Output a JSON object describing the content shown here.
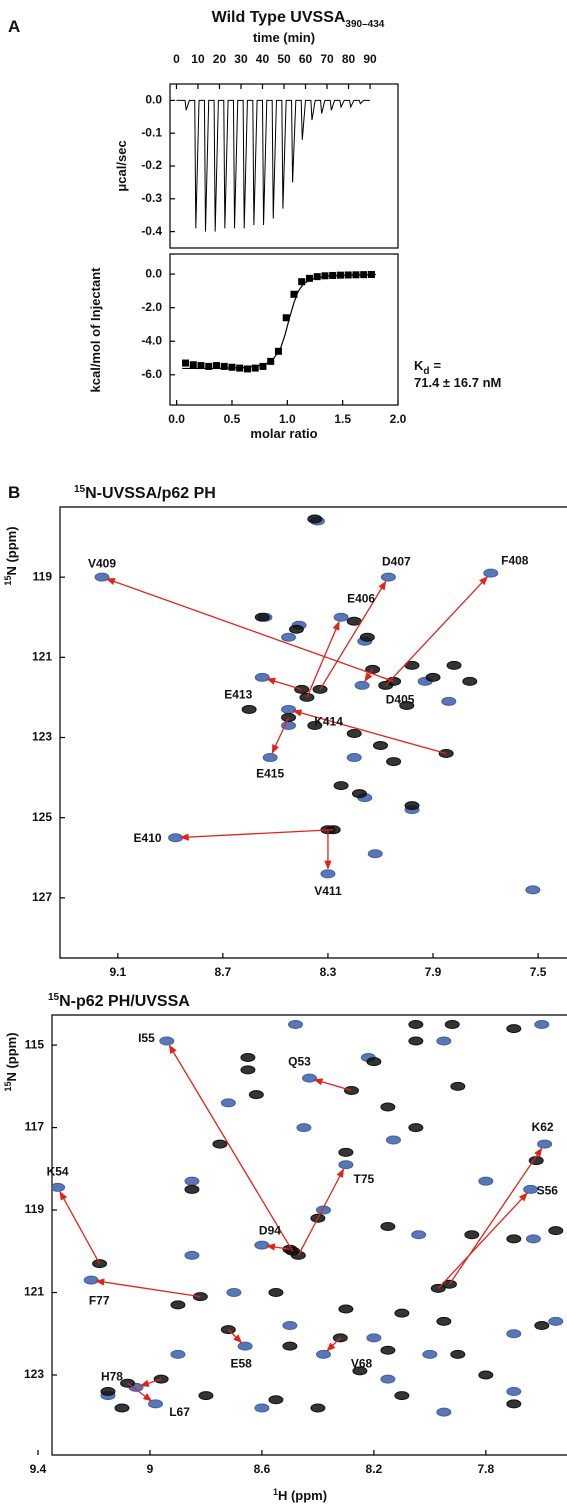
{
  "panel_labels": [
    "A",
    "B"
  ],
  "chart_data": [
    {
      "type": "line",
      "title": "Wild Type UVSSA",
      "title_subscript": "390–434",
      "xlabel": "time (min)",
      "ylabel": "μcal/sec",
      "color": "#000000",
      "xlim": [
        -3,
        103
      ],
      "ylim": [
        -0.45,
        0.05
      ],
      "xticks": [
        0,
        10,
        20,
        30,
        40,
        50,
        60,
        70,
        80,
        90
      ],
      "yticks": [
        {
          "value": 0,
          "label": "0.0"
        },
        -0.1,
        -0.2,
        -0.3,
        -0.4
      ],
      "x": [
        0,
        4,
        4.5,
        6,
        8.5,
        9,
        10.5,
        13,
        13.5,
        15,
        17.5,
        18,
        19.5,
        22,
        22.5,
        24,
        26.5,
        27,
        28.5,
        31,
        31.5,
        33,
        35.5,
        36,
        37.5,
        40,
        40.5,
        42,
        44.5,
        45,
        46.5,
        49,
        49.5,
        51,
        53.5,
        54,
        55.5,
        58,
        58.5,
        60,
        62.5,
        63,
        64.5,
        67,
        67.5,
        69,
        71.5,
        72,
        73.5,
        76,
        76.5,
        78,
        80.5,
        81,
        82.5,
        85,
        85.5,
        87,
        90
      ],
      "values": [
        0,
        0,
        -0.03,
        0,
        0,
        -0.39,
        0,
        0,
        -0.4,
        0,
        0,
        -0.4,
        0,
        0,
        -0.39,
        0,
        0,
        -0.39,
        0,
        0,
        -0.39,
        0,
        0,
        -0.38,
        0,
        0,
        -0.38,
        0,
        0,
        -0.36,
        0,
        0,
        -0.33,
        0,
        0,
        -0.25,
        0,
        0,
        -0.12,
        0,
        0,
        -0.06,
        0,
        0,
        -0.04,
        0,
        0,
        -0.03,
        0,
        0,
        -0.02,
        0,
        0,
        -0.02,
        0,
        0,
        -0.01,
        0,
        0
      ]
    },
    {
      "type": "scatter",
      "xlabel": "molar ratio",
      "ylabel": "kcal/mol of Injectant",
      "color": "#000000",
      "xlim": [
        -0.06,
        2.0
      ],
      "ylim": [
        -7.8,
        1.2
      ],
      "xticks": [
        {
          "value": 0,
          "label": "0.0"
        },
        {
          "value": 0.5,
          "label": "0.5"
        },
        {
          "value": 1,
          "label": "1.0"
        },
        {
          "value": 1.5,
          "label": "1.5"
        },
        {
          "value": 2,
          "label": "2.0"
        }
      ],
      "yticks": [
        {
          "value": 0,
          "label": "0.0"
        },
        {
          "value": -2,
          "label": "-2.0"
        },
        {
          "value": -4,
          "label": "-4.0"
        },
        {
          "value": -6,
          "label": "-6.0"
        }
      ],
      "x": [
        0.08,
        0.15,
        0.22,
        0.29,
        0.36,
        0.43,
        0.5,
        0.57,
        0.64,
        0.71,
        0.78,
        0.85,
        0.92,
        0.99,
        1.06,
        1.13,
        1.2,
        1.27,
        1.34,
        1.41,
        1.48,
        1.55,
        1.62,
        1.69,
        1.76
      ],
      "values": [
        -5.3,
        -5.4,
        -5.45,
        -5.5,
        -5.45,
        -5.5,
        -5.55,
        -5.6,
        -5.65,
        -5.6,
        -5.5,
        -5.2,
        -4.6,
        -2.6,
        -1.2,
        -0.45,
        -0.25,
        -0.15,
        -0.1,
        -0.08,
        -0.06,
        -0.05,
        -0.04,
        -0.03,
        -0.02
      ],
      "fit": {
        "x": [
          0.05,
          0.3,
          0.6,
          0.8,
          0.88,
          0.94,
          0.98,
          1.02,
          1.06,
          1.1,
          1.15,
          1.22,
          1.35,
          1.55,
          1.8
        ],
        "values": [
          -5.62,
          -5.62,
          -5.58,
          -5.4,
          -5.0,
          -4.4,
          -3.6,
          -2.6,
          -1.7,
          -1.0,
          -0.55,
          -0.3,
          -0.12,
          -0.05,
          -0.02
        ]
      },
      "kd_symbol": "K",
      "kd_subscript": "d",
      "kd_equals": "=",
      "kd_value": "71.4 ± 16.7 nM"
    },
    {
      "type": "scatter",
      "title_superscript": "15",
      "title": "N-UVSSA/p62 PH",
      "ylabel_superscript": "15",
      "ylabel": "N (ppm)",
      "free_color": "#111111",
      "bound_color": "#3d5fa8",
      "arrow_color": "#e0241b",
      "xlim": [
        9.32,
        7.39
      ],
      "ylim": [
        128.5,
        117.25
      ],
      "xticks": [
        9.1,
        8.7,
        8.3,
        7.9,
        7.5
      ],
      "yticks": [
        119,
        121,
        123,
        125,
        127
      ],
      "other_peaks": {
        "free": {
          "x": [
            8.55,
            8.42,
            8.2,
            8.15,
            7.98,
            7.9,
            7.82,
            8.6,
            8.35,
            8.2,
            8.1,
            8.05,
            8.25,
            8.18,
            7.98,
            8.35,
            7.76,
            8.0
          ],
          "values": [
            120.0,
            120.3,
            120.1,
            120.5,
            121.2,
            121.5,
            121.2,
            122.3,
            122.7,
            122.9,
            123.2,
            123.6,
            124.2,
            124.4,
            124.7,
            117.55,
            121.6,
            122.2
          ]
        },
        "bound": {
          "x": [
            8.54,
            8.41,
            8.45,
            8.16,
            7.93,
            7.84,
            8.45,
            8.2,
            8.16,
            7.98,
            8.12,
            7.52,
            8.34
          ],
          "values": [
            120.0,
            120.2,
            120.5,
            120.6,
            121.6,
            122.1,
            122.7,
            123.5,
            124.5,
            124.8,
            125.9,
            126.8,
            117.6
          ]
        }
      },
      "assignments": [
        {
          "label": "V409",
          "free": [
            8.05,
            121.6
          ],
          "bound": [
            9.16,
            119.0
          ]
        },
        {
          "label": "F408",
          "free": [
            8.08,
            121.7
          ],
          "bound": [
            7.68,
            118.9
          ]
        },
        {
          "label": "D407",
          "free": [
            8.33,
            121.8
          ],
          "bound": [
            8.07,
            119.0
          ]
        },
        {
          "label": "E406",
          "free": [
            8.38,
            122.0
          ],
          "bound": [
            8.25,
            120.0
          ]
        },
        {
          "label": "D405",
          "free": [
            8.13,
            121.3
          ],
          "bound": [
            8.17,
            121.7
          ]
        },
        {
          "label": "E413",
          "free": [
            8.4,
            121.8
          ],
          "bound": [
            8.55,
            121.5
          ]
        },
        {
          "label": "K414",
          "free": [
            7.85,
            123.4
          ],
          "bound": [
            8.45,
            122.3
          ]
        },
        {
          "label": "E415",
          "free": [
            8.45,
            122.5
          ],
          "bound": [
            8.52,
            123.5
          ]
        },
        {
          "label": "E410",
          "free": [
            8.28,
            125.3
          ],
          "bound": [
            8.88,
            125.5
          ]
        },
        {
          "label": "V411",
          "free": [
            8.3,
            125.3
          ],
          "bound": [
            8.3,
            126.4
          ]
        }
      ]
    },
    {
      "type": "scatter",
      "title_superscript": "15",
      "title": "N-p62 PH/UVSSA",
      "ylabel_superscript": "15",
      "ylabel": "N (ppm)",
      "xlabel_superscript": "1",
      "xlabel": "H (ppm)",
      "free_color": "#111111",
      "bound_color": "#3d5fa8",
      "arrow_color": "#e0241b",
      "xlim": [
        9.35,
        7.51
      ],
      "ylim": [
        124.94,
        114.27
      ],
      "xticks": [
        9.4,
        9.0,
        8.6,
        8.2,
        7.8
      ],
      "yticks": [
        115,
        117,
        119,
        121,
        123
      ],
      "other_peaks": {
        "free": {
          "x": [
            8.65,
            8.65,
            8.2,
            8.05,
            7.92,
            7.7,
            7.9,
            8.15,
            8.05,
            8.3,
            8.75,
            8.62,
            7.62,
            8.85,
            8.4,
            8.15,
            7.85,
            7.7,
            7.55,
            8.9,
            8.55,
            8.3,
            8.1,
            7.95,
            7.6,
            8.5,
            8.15,
            7.9,
            8.25,
            7.8,
            9.15,
            8.8,
            8.55,
            8.1,
            9.1,
            8.4,
            7.7,
            8.05
          ],
          "values": [
            115.3,
            115.6,
            115.4,
            114.9,
            114.5,
            114.6,
            116.0,
            116.5,
            117.0,
            117.6,
            117.4,
            116.2,
            117.8,
            118.5,
            119.2,
            119.4,
            119.6,
            119.7,
            119.5,
            121.3,
            121.0,
            121.4,
            121.5,
            121.7,
            121.8,
            122.3,
            122.4,
            122.5,
            122.9,
            123.0,
            123.4,
            123.5,
            123.6,
            123.5,
            123.8,
            123.8,
            123.7,
            114.5
          ]
        },
        "bound": {
          "x": [
            8.48,
            7.6,
            7.95,
            8.22,
            8.72,
            8.45,
            8.13,
            7.8,
            8.85,
            8.38,
            8.04,
            7.63,
            8.85,
            8.7,
            8.5,
            8.2,
            7.7,
            8.0,
            7.7,
            8.9,
            8.15,
            9.15,
            8.6,
            7.95,
            7.55
          ],
          "values": [
            114.5,
            114.5,
            114.9,
            115.3,
            116.4,
            117.0,
            117.3,
            118.3,
            118.3,
            119.0,
            119.6,
            119.7,
            120.1,
            121.0,
            121.8,
            122.1,
            122.0,
            122.5,
            123.4,
            122.5,
            123.1,
            123.5,
            123.8,
            123.9,
            121.7
          ]
        }
      },
      "assignments": [
        {
          "label": "I55",
          "free": [
            8.49,
            120.0
          ],
          "bound": [
            8.94,
            114.9
          ]
        },
        {
          "label": "Q53",
          "free": [
            8.28,
            116.1
          ],
          "bound": [
            8.43,
            115.8
          ]
        },
        {
          "label": "K62",
          "free": [
            7.93,
            120.8
          ],
          "bound": [
            7.59,
            117.4
          ]
        },
        {
          "label": "K54",
          "free": [
            9.18,
            120.3
          ],
          "bound": [
            9.33,
            118.45
          ]
        },
        {
          "label": "S56",
          "free": [
            7.97,
            120.9
          ],
          "bound": [
            7.64,
            118.5
          ]
        },
        {
          "label": "T75",
          "free": [
            8.47,
            120.1
          ],
          "bound": [
            8.3,
            117.9
          ]
        },
        {
          "label": "D94",
          "free": [
            8.5,
            119.95
          ],
          "bound": [
            8.6,
            119.85
          ]
        },
        {
          "label": "F77",
          "free": [
            8.82,
            121.1
          ],
          "bound": [
            9.21,
            120.7
          ]
        },
        {
          "label": "E58",
          "free": [
            8.72,
            121.9
          ],
          "bound": [
            8.66,
            122.3
          ]
        },
        {
          "label": "V68",
          "free": [
            8.32,
            122.1
          ],
          "bound": [
            8.38,
            122.5
          ]
        },
        {
          "label": "H78",
          "free": [
            8.96,
            123.1
          ],
          "bound": [
            9.05,
            123.3
          ]
        },
        {
          "label": "L67",
          "free": [
            9.08,
            123.2
          ],
          "bound": [
            8.98,
            123.7
          ]
        }
      ]
    }
  ]
}
